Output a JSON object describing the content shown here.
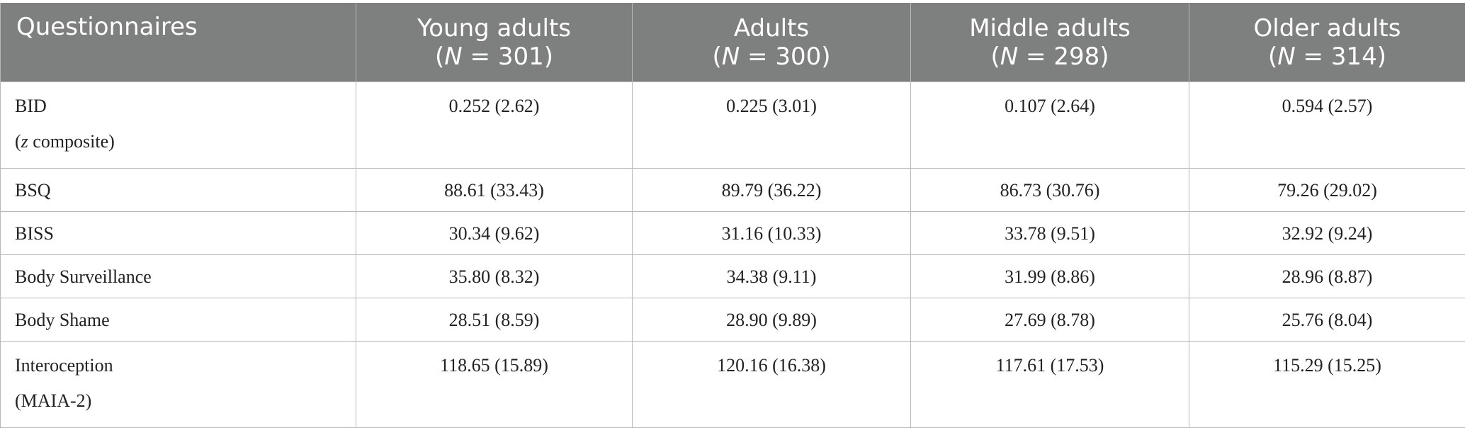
{
  "table": {
    "header": {
      "first": "Questionnaires",
      "groups": [
        {
          "name": "Young adults",
          "n_prefix": "(",
          "n_label": "N",
          "n_value": " = 301)"
        },
        {
          "name": "Adults",
          "n_prefix": "(",
          "n_label": "N",
          "n_value": " = 300)"
        },
        {
          "name": "Middle adults",
          "n_prefix": "(",
          "n_label": "N",
          "n_value": " = 298)"
        },
        {
          "name": "Older adults",
          "n_prefix": "(",
          "n_label": "N",
          "n_value": " = 314)"
        }
      ]
    },
    "rows": [
      {
        "label": "BID",
        "sublabel_prefix": "(",
        "sublabel_italic": "z",
        "sublabel_rest": " composite)",
        "values": [
          "0.252 (2.62)",
          "0.225 (3.01)",
          "0.107 (2.64)",
          "0.594 (2.57)"
        ]
      },
      {
        "label": "BSQ",
        "values": [
          "88.61 (33.43)",
          "89.79 (36.22)",
          "86.73 (30.76)",
          "79.26 (29.02)"
        ]
      },
      {
        "label": "BISS",
        "values": [
          "30.34 (9.62)",
          "31.16 (10.33)",
          "33.78 (9.51)",
          "32.92 (9.24)"
        ]
      },
      {
        "label": "Body Surveillance",
        "values": [
          "35.80 (8.32)",
          "34.38 (9.11)",
          "31.99 (8.86)",
          "28.96 (8.87)"
        ]
      },
      {
        "label": "Body Shame",
        "values": [
          "28.51 (8.59)",
          "28.90 (9.89)",
          "27.69 (8.78)",
          "25.76 (8.04)"
        ]
      },
      {
        "label": "Interoception",
        "sublabel": "(MAIA-2)",
        "values": [
          "118.65 (15.89)",
          "120.16 (16.38)",
          "117.61 (17.53)",
          "115.29 (15.25)"
        ]
      }
    ]
  }
}
